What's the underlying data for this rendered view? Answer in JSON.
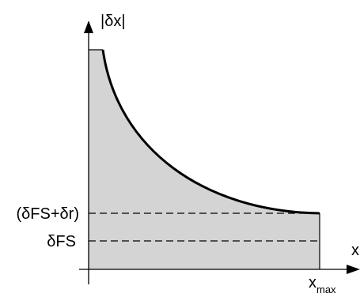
{
  "diagram": {
    "y_axis_label": "|δx|",
    "x_axis_label": "x",
    "x_max_label": {
      "base": "x",
      "subscript": "max"
    },
    "level_labels": {
      "upper": "(δFS+δr)",
      "lower": "δFS"
    },
    "colors": {
      "fill": "#d4d4d4",
      "stroke": "#000000",
      "background": "#ffffff"
    }
  }
}
